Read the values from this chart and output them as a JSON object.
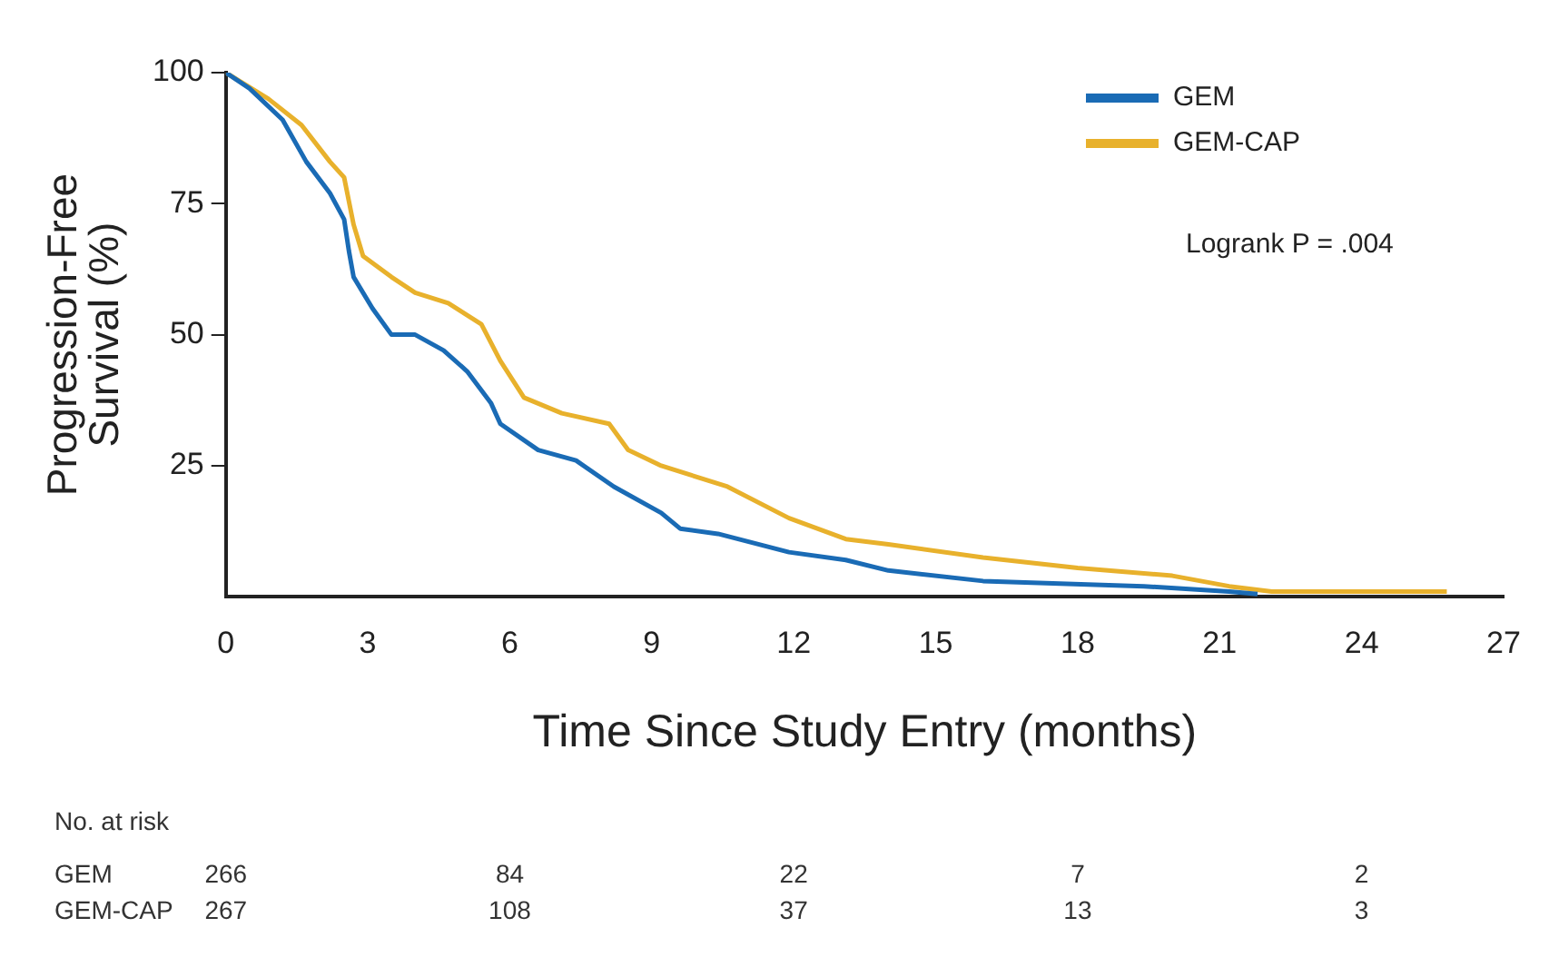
{
  "chart_data": {
    "type": "line",
    "ylabel": "Progression-Free\nSurvival (%)",
    "xlabel": "Time Since Study Entry (months)",
    "xlim": [
      0,
      27
    ],
    "xticks": [
      0,
      3,
      6,
      9,
      12,
      15,
      18,
      21,
      24,
      27
    ],
    "ylim": [
      0,
      100
    ],
    "yticks": [
      25,
      50,
      75,
      100
    ],
    "grid": false,
    "legend": "top right",
    "marker": "none",
    "line_style": "solid",
    "series": [
      {
        "name": "GEM",
        "color": "#1a6bb5",
        "x": [
          0,
          0.5,
          1.2,
          1.7,
          2.2,
          2.5,
          2.6,
          2.7,
          3.1,
          3.5,
          4.0,
          4.6,
          5.1,
          5.6,
          5.8,
          6.6,
          7.4,
          8.2,
          9.2,
          9.6,
          10.4,
          11.9,
          13.1,
          14,
          16,
          19.4,
          21.2,
          21.8
        ],
        "values": [
          100,
          97,
          91,
          83,
          77,
          72,
          66,
          61,
          55,
          50,
          50,
          47,
          43,
          37,
          33,
          28,
          26,
          21,
          16,
          13,
          12,
          8.5,
          7,
          5,
          3,
          2,
          1,
          0.5
        ]
      },
      {
        "name": "GEM-CAP",
        "color": "#e8b12c",
        "x": [
          0,
          0.9,
          1.6,
          2.2,
          2.5,
          2.7,
          2.9,
          3.5,
          4.0,
          4.7,
          5.4,
          5.8,
          6.3,
          7.1,
          8.1,
          8.5,
          9.2,
          10.6,
          11.9,
          13.1,
          14,
          16,
          18,
          20,
          21.2,
          22.1,
          25.8
        ],
        "values": [
          100,
          95,
          90,
          83,
          80,
          71,
          65,
          61,
          58,
          56,
          52,
          45,
          38,
          35,
          33,
          28,
          25,
          21,
          15,
          11,
          10,
          7.5,
          5.5,
          4,
          2,
          1,
          1
        ]
      }
    ],
    "annotations": [
      "Logrank P = .004",
      "No. at risk",
      "GEM",
      "266",
      "84",
      "22",
      "7",
      "2",
      "GEM-CAP",
      "267",
      "108",
      "37",
      "13",
      "3"
    ]
  }
}
